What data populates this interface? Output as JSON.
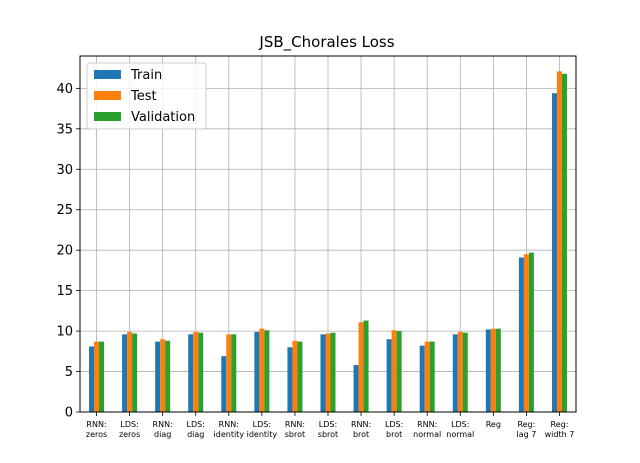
{
  "chart_data": {
    "type": "bar",
    "title": "JSB_Chorales Loss",
    "xlabel": "",
    "ylabel": "",
    "ylim": [
      0,
      44
    ],
    "yticks": [
      0,
      5,
      10,
      15,
      20,
      25,
      30,
      35,
      40
    ],
    "grid": true,
    "legend_position": "top-left",
    "categories": [
      [
        "RNN:",
        "zeros"
      ],
      [
        "LDS:",
        "zeros"
      ],
      [
        "RNN:",
        "diag"
      ],
      [
        "LDS:",
        "diag"
      ],
      [
        "RNN:",
        "identity"
      ],
      [
        "LDS:",
        "identity"
      ],
      [
        "RNN:",
        "sbrot"
      ],
      [
        "LDS:",
        "sbrot"
      ],
      [
        "RNN:",
        "brot"
      ],
      [
        "LDS:",
        "brot"
      ],
      [
        "RNN:",
        "normal"
      ],
      [
        "LDS:",
        "normal"
      ],
      [
        "Reg"
      ],
      [
        "Reg:",
        "lag 7"
      ],
      [
        "Reg:",
        "width 7"
      ]
    ],
    "series": [
      {
        "name": "Train",
        "color": "#1f77b4",
        "values": [
          8.1,
          9.6,
          8.7,
          9.6,
          6.9,
          9.9,
          8.0,
          9.6,
          5.8,
          9.0,
          8.2,
          9.6,
          10.2,
          19.1,
          39.4
        ]
      },
      {
        "name": "Test",
        "color": "#ff7f0e",
        "values": [
          8.7,
          9.9,
          9.0,
          9.9,
          9.6,
          10.3,
          8.8,
          9.7,
          11.1,
          10.1,
          8.7,
          9.9,
          10.3,
          19.5,
          42.1
        ]
      },
      {
        "name": "Validation",
        "color": "#2ca02c",
        "values": [
          8.7,
          9.7,
          8.8,
          9.8,
          9.6,
          10.1,
          8.7,
          9.8,
          11.3,
          10.0,
          8.7,
          9.8,
          10.3,
          19.7,
          41.8
        ]
      }
    ]
  }
}
